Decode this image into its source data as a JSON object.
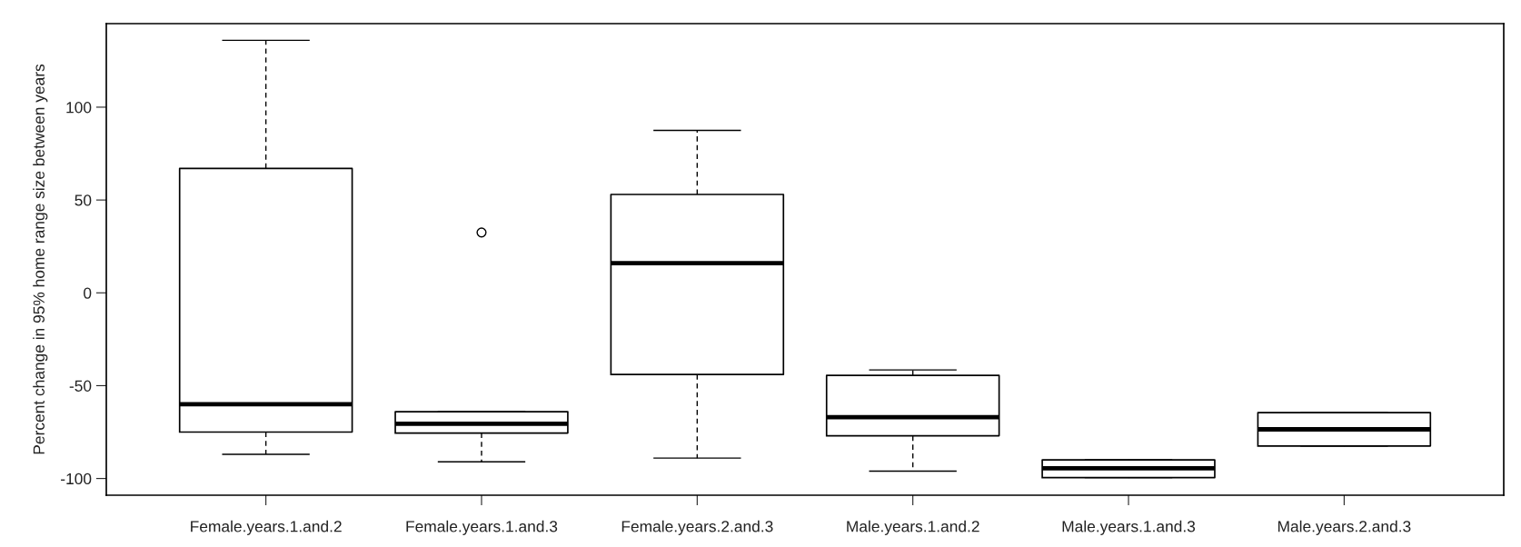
{
  "chart_data": {
    "type": "box",
    "ylabel": "Percent change in 95% home range size between years",
    "categories": [
      "Female.years.1.and.2",
      "Female.years.1.and.3",
      "Female.years.2.and.3",
      "Male.years.1.and.2",
      "Male.years.1.and.3",
      "Male.years.2.and.3"
    ],
    "boxes": [
      {
        "low": -87,
        "q1": -75,
        "median": -60,
        "q3": 67,
        "high": 136
      },
      {
        "low": -91,
        "q1": -75.5,
        "median": -70.5,
        "q3": -64,
        "high": -64,
        "outliers": [
          32.5
        ]
      },
      {
        "low": -89,
        "q1": -44,
        "median": 16,
        "q3": 53,
        "high": 87.5
      },
      {
        "low": -96,
        "q1": -77,
        "median": -67,
        "q3": -44.5,
        "high": -41.5
      },
      {
        "low": -99.5,
        "q1": -99.5,
        "median": -94.5,
        "q3": -90,
        "high": -90
      },
      {
        "low": -82.5,
        "q1": -82.5,
        "median": -73.5,
        "q3": -64.5,
        "high": -64.5
      }
    ],
    "ylim": [
      -109,
      145
    ],
    "yticks": [
      -100,
      -50,
      0,
      50,
      100
    ],
    "grid": false
  }
}
